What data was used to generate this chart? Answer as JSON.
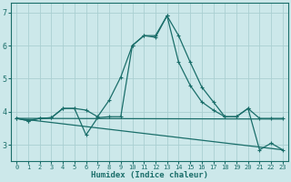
{
  "xlabel": "Humidex (Indice chaleur)",
  "xlim": [
    -0.5,
    23.5
  ],
  "ylim": [
    2.5,
    7.3
  ],
  "yticks": [
    3,
    4,
    5,
    6,
    7
  ],
  "xticks": [
    0,
    1,
    2,
    3,
    4,
    5,
    6,
    7,
    8,
    9,
    10,
    11,
    12,
    13,
    14,
    15,
    16,
    17,
    18,
    19,
    20,
    21,
    22,
    23
  ],
  "bg_color": "#cce8ea",
  "grid_color": "#aacfd2",
  "line_color": "#1a6e6a",
  "lines": [
    {
      "x": [
        0,
        1,
        2,
        3,
        4,
        5,
        6,
        7,
        8,
        9,
        10,
        11,
        12,
        13,
        14,
        15,
        16,
        17,
        18,
        19,
        20,
        21,
        22,
        23
      ],
      "y": [
        3.8,
        3.73,
        3.8,
        3.82,
        4.1,
        4.1,
        4.05,
        3.85,
        4.35,
        5.05,
        6.0,
        6.3,
        6.3,
        6.9,
        6.3,
        5.5,
        4.75,
        4.3,
        3.85,
        3.85,
        4.1,
        3.8,
        3.8,
        3.8
      ],
      "marker": true
    },
    {
      "x": [
        0,
        1,
        2,
        3,
        4,
        5,
        6,
        7,
        8,
        9,
        10,
        11,
        12,
        13,
        14,
        15,
        16,
        17,
        18,
        19,
        20,
        21,
        22,
        23
      ],
      "y": [
        3.8,
        3.73,
        3.8,
        3.82,
        4.1,
        4.1,
        3.3,
        3.82,
        3.85,
        3.85,
        6.0,
        6.3,
        6.25,
        6.9,
        5.5,
        4.8,
        4.3,
        4.05,
        3.85,
        3.85,
        4.1,
        2.85,
        3.05,
        2.85
      ],
      "marker": true
    },
    {
      "x": [
        0,
        23
      ],
      "y": [
        3.8,
        3.78
      ],
      "marker": false
    },
    {
      "x": [
        0,
        23
      ],
      "y": [
        3.8,
        2.85
      ],
      "marker": false
    }
  ]
}
